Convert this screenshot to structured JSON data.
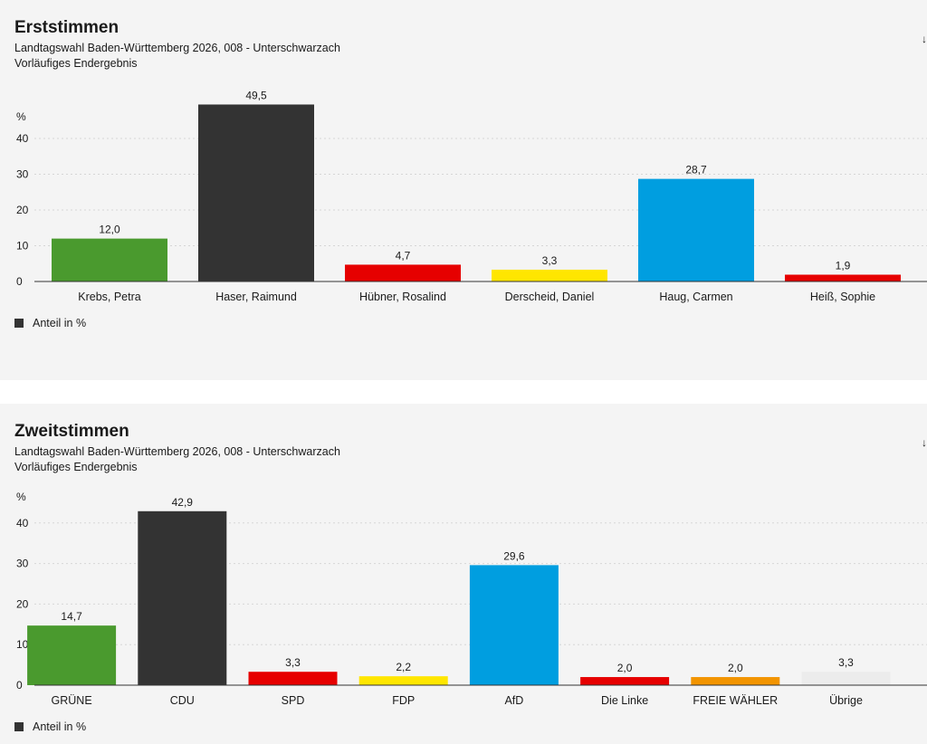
{
  "charts": [
    {
      "title": "Erststimmen",
      "subtitle": "Landtagswahl Baden-Württemberg 2026, 008 - Unterschwarzach",
      "subtitle2": "Vorläufiges Endergebnis",
      "legend_label": "Anteil in %",
      "edge_mark": "↓"
    },
    {
      "title": "Zweitstimmen",
      "subtitle": "Landtagswahl Baden-Württemberg 2026, 008 - Unterschwarzach",
      "subtitle2": "Vorläufiges Endergebnis",
      "legend_label": "Anteil in %",
      "edge_mark": "↓"
    }
  ],
  "chart_data": [
    {
      "type": "bar",
      "title": "Erststimmen",
      "ylabel": "%",
      "ylim": [
        0,
        50
      ],
      "yticks": [
        0,
        10,
        20,
        30,
        40
      ],
      "grid": true,
      "legend": "bottom-left",
      "categories": [
        "Krebs, Petra",
        "Haser, Raimund",
        "Hübner, Rosalind",
        "Derscheid, Daniel",
        "Haug, Carmen",
        "Heiß, Sophie"
      ],
      "values": [
        12.0,
        49.5,
        4.7,
        3.3,
        28.7,
        1.9
      ],
      "value_labels": [
        "12,0",
        "49,5",
        "4,7",
        "3,3",
        "28,7",
        "1,9"
      ],
      "colors": [
        "#4a9a2e",
        "#333333",
        "#e60000",
        "#ffe600",
        "#009ee0",
        "#e60000"
      ],
      "series": [
        {
          "name": "Anteil in %",
          "values": [
            12.0,
            49.5,
            4.7,
            3.3,
            28.7,
            1.9
          ]
        }
      ]
    },
    {
      "type": "bar",
      "title": "Zweitstimmen",
      "ylabel": "%",
      "ylim": [
        0,
        45
      ],
      "yticks": [
        0,
        10,
        20,
        30,
        40
      ],
      "grid": true,
      "legend": "bottom-left",
      "categories": [
        "GRÜNE",
        "CDU",
        "SPD",
        "FDP",
        "AfD",
        "Die Linke",
        "FREIE WÄHLER",
        "Übrige"
      ],
      "values": [
        14.7,
        42.9,
        3.3,
        2.2,
        29.6,
        2.0,
        2.0,
        3.3
      ],
      "value_labels": [
        "14,7",
        "42,9",
        "3,3",
        "2,2",
        "29,6",
        "2,0",
        "2,0",
        "3,3"
      ],
      "colors": [
        "#4a9a2e",
        "#333333",
        "#e60000",
        "#ffe600",
        "#009ee0",
        "#e60000",
        "#f29400",
        "#ececec"
      ],
      "series": [
        {
          "name": "Anteil in %",
          "values": [
            14.7,
            42.9,
            3.3,
            2.2,
            29.6,
            2.0,
            2.0,
            3.3
          ]
        }
      ]
    }
  ]
}
